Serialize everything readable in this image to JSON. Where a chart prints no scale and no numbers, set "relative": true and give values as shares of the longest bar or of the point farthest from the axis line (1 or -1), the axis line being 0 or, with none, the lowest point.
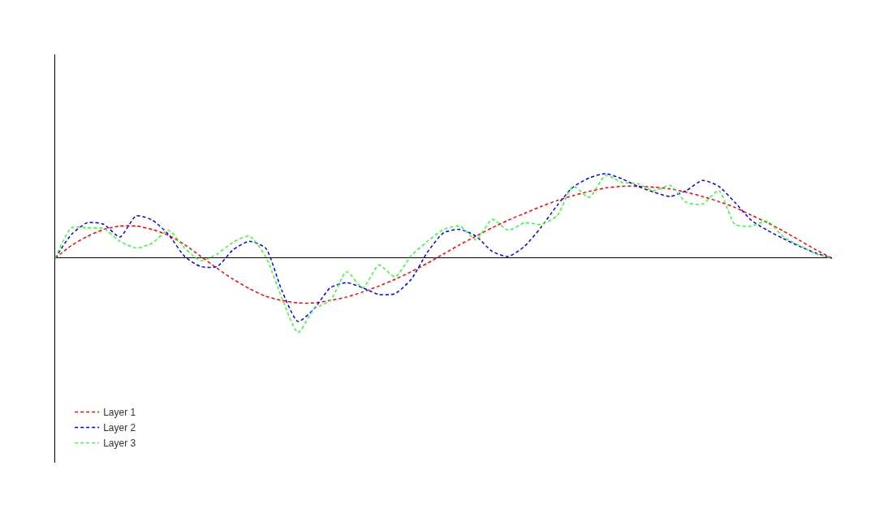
{
  "chart_data": {
    "type": "line",
    "relative": true,
    "line_style": "dashed",
    "marker": "none",
    "legend": "bottom left",
    "tick_labels": false,
    "categories": [
      null,
      null,
      null,
      null,
      null,
      null,
      null,
      null,
      null,
      null,
      null,
      null,
      null,
      null,
      null,
      null,
      null,
      null,
      null,
      null,
      null,
      null,
      null,
      null,
      null,
      null,
      null,
      null,
      null,
      null,
      null,
      null,
      null,
      null,
      null,
      null,
      null,
      null,
      null,
      null,
      null,
      null,
      null,
      null,
      null,
      null,
      null,
      null,
      null
    ],
    "series": [
      {
        "name": "Layer 1",
        "color": "#ff0000",
        "values": [
          0,
          0.15,
          0.26,
          0.34,
          0.38,
          0.38,
          0.34,
          0.27,
          0.16,
          0.02,
          -0.12,
          -0.25,
          -0.36,
          -0.45,
          -0.5,
          -0.53,
          -0.53,
          -0.5,
          -0.46,
          -0.4,
          -0.33,
          -0.25,
          -0.16,
          -0.06,
          0.05,
          0.16,
          0.26,
          0.36,
          0.45,
          0.53,
          0.61,
          0.68,
          0.74,
          0.79,
          0.83,
          0.85,
          0.85,
          0.84,
          0.82,
          0.78,
          0.73,
          0.67,
          0.6,
          0.51,
          0.42,
          0.32,
          0.21,
          0.1,
          0
        ]
      },
      {
        "name": "Layer 2",
        "color": "#0000ff",
        "values": [
          0,
          0.28,
          0.42,
          0.4,
          0.25,
          0.5,
          0.45,
          0.28,
          0.02,
          -0.1,
          -0.1,
          0.1,
          0.2,
          0.12,
          -0.38,
          -0.75,
          -0.6,
          -0.35,
          -0.29,
          -0.35,
          -0.43,
          -0.42,
          -0.25,
          0.07,
          0.3,
          0.34,
          0.26,
          0.08,
          0.02,
          0.14,
          0.36,
          0.62,
          0.84,
          0.95,
          1,
          0.94,
          0.85,
          0.78,
          0.73,
          0.8,
          0.92,
          0.85,
          0.66,
          0.45,
          0.33,
          0.23,
          0.14,
          0.06,
          0
        ]
      },
      {
        "name": "Layer 3",
        "color": "#33ff33",
        "values": [
          0,
          0.36,
          0.36,
          0.35,
          0.2,
          0.12,
          0.18,
          0.33,
          0.12,
          -0.03,
          0.05,
          0.19,
          0.26,
          0.02,
          -0.47,
          -0.88,
          -0.6,
          -0.5,
          -0.16,
          -0.35,
          -0.08,
          -0.22,
          0.03,
          0.2,
          0.34,
          0.38,
          0.22,
          0.46,
          0.33,
          0.42,
          0.4,
          0.5,
          0.85,
          0.72,
          0.98,
          0.9,
          0.88,
          0.8,
          0.86,
          0.66,
          0.64,
          0.8,
          0.4,
          0.38,
          0.44,
          0.25,
          0.15,
          0.05,
          0
        ]
      }
    ]
  }
}
